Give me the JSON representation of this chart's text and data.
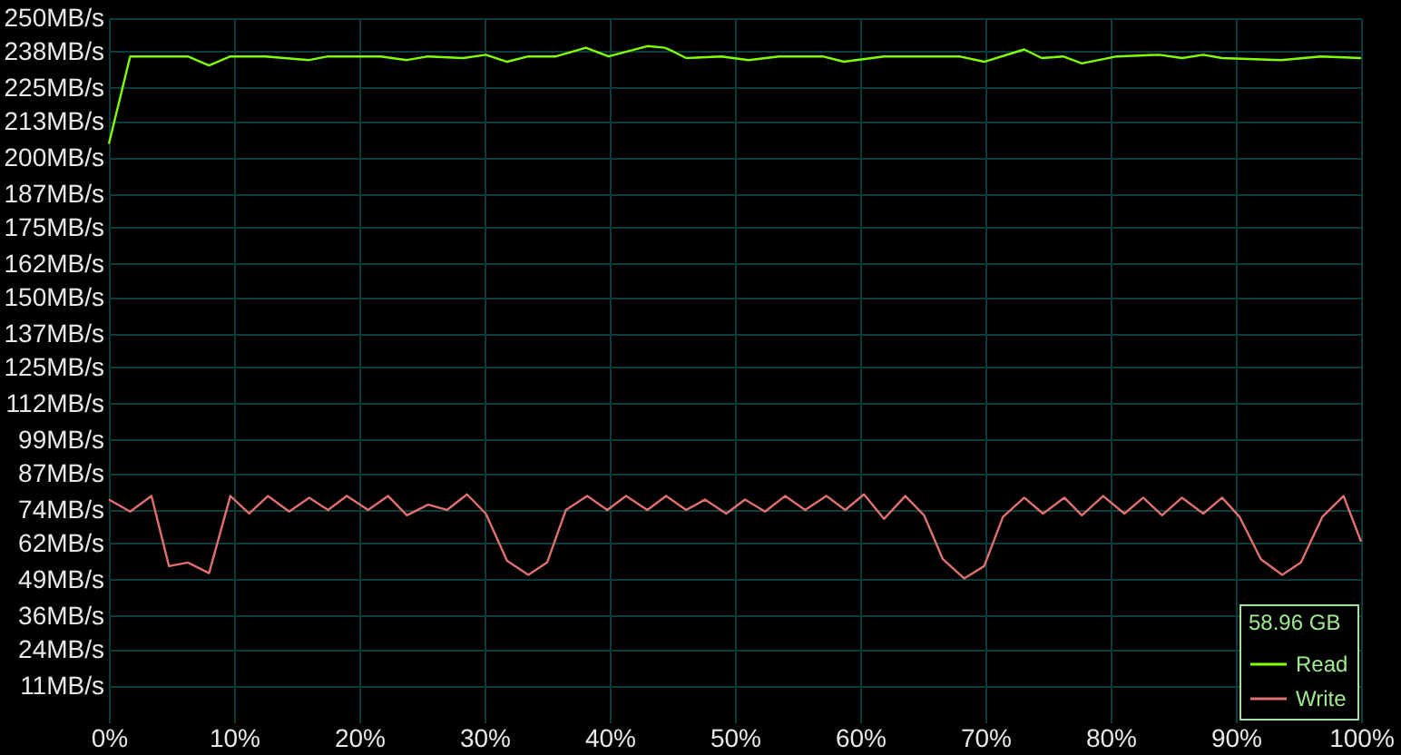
{
  "chart_data": {
    "type": "line",
    "legend_title": "58.96 GB",
    "xlim": [
      0,
      100
    ],
    "xticks": [
      {
        "value": 0,
        "label": "0%"
      },
      {
        "value": 10,
        "label": "10%"
      },
      {
        "value": 20,
        "label": "20%"
      },
      {
        "value": 30,
        "label": "30%"
      },
      {
        "value": 40,
        "label": "40%"
      },
      {
        "value": 50,
        "label": "50%"
      },
      {
        "value": 60,
        "label": "60%"
      },
      {
        "value": 70,
        "label": "70%"
      },
      {
        "value": 80,
        "label": "80%"
      },
      {
        "value": 90,
        "label": "90%"
      },
      {
        "value": 100,
        "label": "100%"
      }
    ],
    "ylim": [
      -2,
      250
    ],
    "yticks": [
      {
        "value": 11,
        "label": "11MB/s"
      },
      {
        "value": 24,
        "label": "24MB/s"
      },
      {
        "value": 36,
        "label": "36MB/s"
      },
      {
        "value": 49,
        "label": "49MB/s"
      },
      {
        "value": 62,
        "label": "62MB/s"
      },
      {
        "value": 74,
        "label": "74MB/s"
      },
      {
        "value": 87,
        "label": "87MB/s"
      },
      {
        "value": 99,
        "label": "99MB/s"
      },
      {
        "value": 112,
        "label": "112MB/s"
      },
      {
        "value": 125,
        "label": "125MB/s"
      },
      {
        "value": 137,
        "label": "137MB/s"
      },
      {
        "value": 150,
        "label": "150MB/s"
      },
      {
        "value": 162,
        "label": "162MB/s"
      },
      {
        "value": 175,
        "label": "175MB/s"
      },
      {
        "value": 187,
        "label": "187MB/s"
      },
      {
        "value": 200,
        "label": "200MB/s"
      },
      {
        "value": 213,
        "label": "213MB/s"
      },
      {
        "value": 225,
        "label": "225MB/s"
      },
      {
        "value": 238,
        "label": "238MB/s"
      },
      {
        "value": 250,
        "label": "250MB/s"
      }
    ],
    "grid": true,
    "legend": "bottom right",
    "line_style": "solid",
    "series": [
      {
        "name": "Read",
        "color": "#80ff00",
        "x": [
          0,
          1.7,
          6.3,
          8.0,
          9.7,
          12.5,
          16.0,
          17.5,
          21.7,
          23.8,
          25.5,
          28.3,
          30.1,
          31.8,
          33.5,
          35.7,
          38.1,
          39.9,
          43.0,
          44.4,
          45.1,
          46.1,
          48.9,
          51.1,
          53.5,
          57.0,
          58.7,
          61.9,
          67.9,
          69.9,
          73.1,
          74.5,
          76.2,
          77.7,
          80.5,
          83.9,
          85.7,
          87.4,
          88.9,
          93.6,
          96.8,
          100
        ],
        "values": [
          205,
          236.3,
          236.3,
          233.1,
          236.3,
          236.3,
          235,
          236.3,
          236.3,
          235,
          236.3,
          235.7,
          236.9,
          234.4,
          236.3,
          236.3,
          239.4,
          236.3,
          240,
          239.4,
          238,
          235.7,
          236.3,
          235,
          236.3,
          236.3,
          234.4,
          236.3,
          236.3,
          234.4,
          238.8,
          235.7,
          236.3,
          233.8,
          236.3,
          236.9,
          235.7,
          236.9,
          235.7,
          235,
          236.3,
          235.7
        ]
      },
      {
        "name": "Write",
        "color": "#e07070",
        "x": [
          0,
          1.7,
          3.4,
          4.8,
          6.3,
          8.0,
          9.7,
          11.2,
          12.7,
          14.4,
          16.0,
          17.5,
          19.0,
          20.7,
          22.3,
          23.8,
          25.5,
          27.0,
          28.6,
          30.1,
          31.8,
          33.5,
          35.0,
          36.5,
          38.2,
          39.8,
          41.3,
          43.0,
          44.5,
          46.1,
          47.6,
          49.3,
          50.8,
          52.4,
          54.0,
          55.6,
          57.3,
          58.8,
          60.3,
          61.9,
          63.6,
          65.1,
          66.6,
          68.3,
          69.9,
          71.4,
          73.1,
          74.6,
          76.3,
          77.7,
          79.4,
          81.1,
          82.6,
          84.1,
          85.7,
          87.4,
          88.9,
          90.3,
          92.0,
          93.7,
          95.2,
          96.9,
          98.6,
          100
        ],
        "values": [
          77.7,
          73.4,
          79,
          53.9,
          55.2,
          51.4,
          79,
          72.7,
          79,
          73.4,
          78.4,
          74,
          79,
          74,
          79,
          72.1,
          75.9,
          74,
          79.6,
          72.7,
          55.8,
          50.8,
          55.2,
          74,
          79,
          74,
          79,
          74,
          79,
          74,
          77.7,
          72.7,
          77.7,
          73.4,
          79,
          74,
          79,
          74,
          79.6,
          70.8,
          79,
          72.1,
          56.4,
          49.5,
          53.9,
          71.5,
          78.4,
          72.7,
          78.4,
          72.1,
          79,
          72.7,
          78.4,
          72.1,
          78.4,
          72.7,
          78.4,
          71.5,
          56.4,
          50.8,
          55.2,
          71.5,
          79,
          62.7
        ]
      }
    ]
  }
}
